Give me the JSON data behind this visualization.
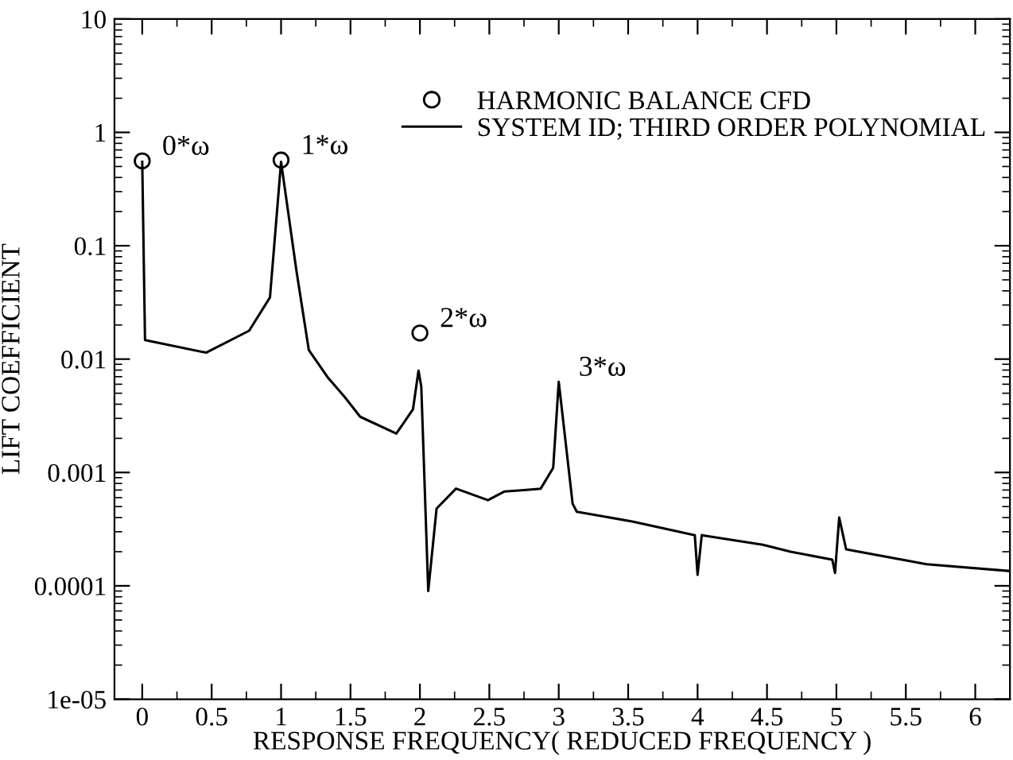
{
  "chart_data": {
    "type": "line",
    "xlabel": "RESPONSE FREQUENCY( REDUCED FREQUENCY )",
    "ylabel": "LIFT COEFFICIENT",
    "log": "y",
    "xlim": [
      -0.2,
      6.25
    ],
    "ylim": [
      1e-05,
      10
    ],
    "xticks": [
      0,
      0.5,
      1,
      1.5,
      2,
      2.5,
      3,
      3.5,
      4,
      4.5,
      5,
      5.5,
      6
    ],
    "yticks": [
      1e-05,
      0.0001,
      0.001,
      0.01,
      0.1,
      1,
      10
    ],
    "grid": false,
    "legend": "top right",
    "series": [
      {
        "name": "HARMONIC BALANCE CFD",
        "type": "scatter",
        "marker": "circle",
        "color": "#000000",
        "x": [
          0,
          1,
          2
        ],
        "values": [
          0.56,
          0.57,
          0.017
        ]
      },
      {
        "name": "SYSTEM ID; THIRD ORDER POLYNOMIAL",
        "marker": "none",
        "line_style": "solid",
        "color": "#000000",
        "x": [
          0,
          0.02,
          0.46,
          0.77,
          0.92,
          1.0,
          1.11,
          1.2,
          1.34,
          1.46,
          1.57,
          1.83,
          1.95,
          1.99,
          2.01,
          2.06,
          2.12,
          2.26,
          2.49,
          2.61,
          2.75,
          2.87,
          2.96,
          3.0,
          3.1,
          3.13,
          3.53,
          3.98,
          4.0,
          4.03,
          4.47,
          4.67,
          4.97,
          4.99,
          5.02,
          5.07,
          5.65,
          6.25
        ],
        "values": [
          0.55,
          0.0147,
          0.0114,
          0.0178,
          0.035,
          0.55,
          0.061,
          0.012,
          0.0068,
          0.0046,
          0.0031,
          0.0022,
          0.0036,
          0.0079,
          0.0057,
          9e-05,
          0.00048,
          0.00072,
          0.00057,
          0.00068,
          0.0007,
          0.00072,
          0.0011,
          0.0063,
          0.00053,
          0.00045,
          0.00037,
          0.00028,
          0.000125,
          0.00028,
          0.00023,
          0.0002,
          0.00017,
          0.00013,
          0.0004,
          0.00021,
          0.000155,
          0.000135
        ]
      }
    ],
    "annotations": [
      {
        "text": "0*ω",
        "x": 0,
        "y": 0.56
      },
      {
        "text": "1*ω",
        "x": 1,
        "y": 0.57
      },
      {
        "text": "2*ω",
        "x": 2,
        "y": 0.017
      },
      {
        "text": "3*ω",
        "x": 3,
        "y": 0.0063
      }
    ]
  }
}
